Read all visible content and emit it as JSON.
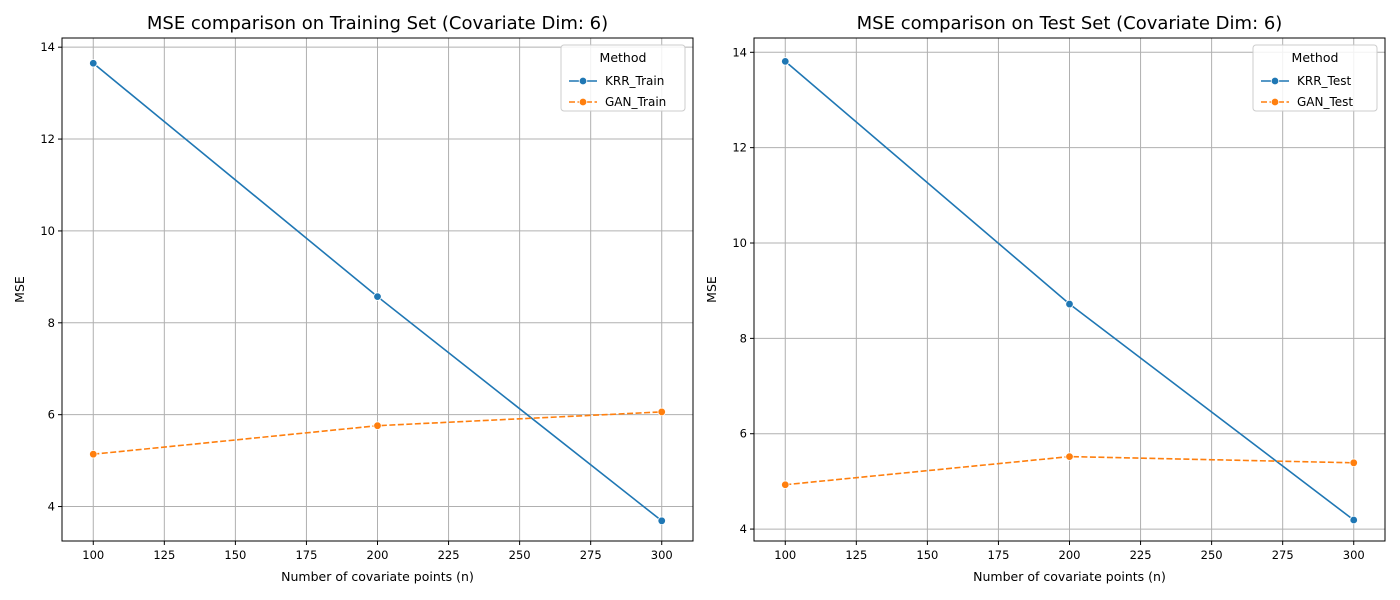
{
  "chart_data": [
    {
      "type": "line",
      "title": "MSE comparison on Training Set (Covariate Dim: 6)",
      "xlabel": "Number of covariate points (n)",
      "ylabel": "MSE",
      "xlim": [
        89,
        311
      ],
      "ylim": [
        3.25,
        14.2
      ],
      "xticks": [
        100,
        125,
        150,
        175,
        200,
        225,
        250,
        275,
        300
      ],
      "yticks": [
        4,
        6,
        8,
        10,
        12,
        14
      ],
      "grid": true,
      "legend": {
        "title": "Method",
        "placement": "top-right"
      },
      "series": [
        {
          "name": "KRR_Train",
          "color": "#1f77b4",
          "dash": "solid",
          "x": [
            100,
            200,
            300
          ],
          "y": [
            13.65,
            8.57,
            3.69
          ]
        },
        {
          "name": "GAN_Train",
          "color": "#ff7f0e",
          "dash": "dashed",
          "x": [
            100,
            200,
            300
          ],
          "y": [
            5.14,
            5.76,
            6.06
          ]
        }
      ]
    },
    {
      "type": "line",
      "title": "MSE comparison on Test Set (Covariate Dim: 6)",
      "xlabel": "Number of covariate points (n)",
      "ylabel": "MSE",
      "xlim": [
        89,
        311
      ],
      "ylim": [
        3.75,
        14.3
      ],
      "xticks": [
        100,
        125,
        150,
        175,
        200,
        225,
        250,
        275,
        300
      ],
      "yticks": [
        4,
        6,
        8,
        10,
        12,
        14
      ],
      "grid": true,
      "legend": {
        "title": "Method",
        "placement": "top-right"
      },
      "series": [
        {
          "name": "KRR_Test",
          "color": "#1f77b4",
          "dash": "solid",
          "x": [
            100,
            200,
            300
          ],
          "y": [
            13.81,
            8.72,
            4.19
          ]
        },
        {
          "name": "GAN_Test",
          "color": "#ff7f0e",
          "dash": "dashed",
          "x": [
            100,
            200,
            300
          ],
          "y": [
            4.93,
            5.52,
            5.39
          ]
        }
      ]
    }
  ]
}
